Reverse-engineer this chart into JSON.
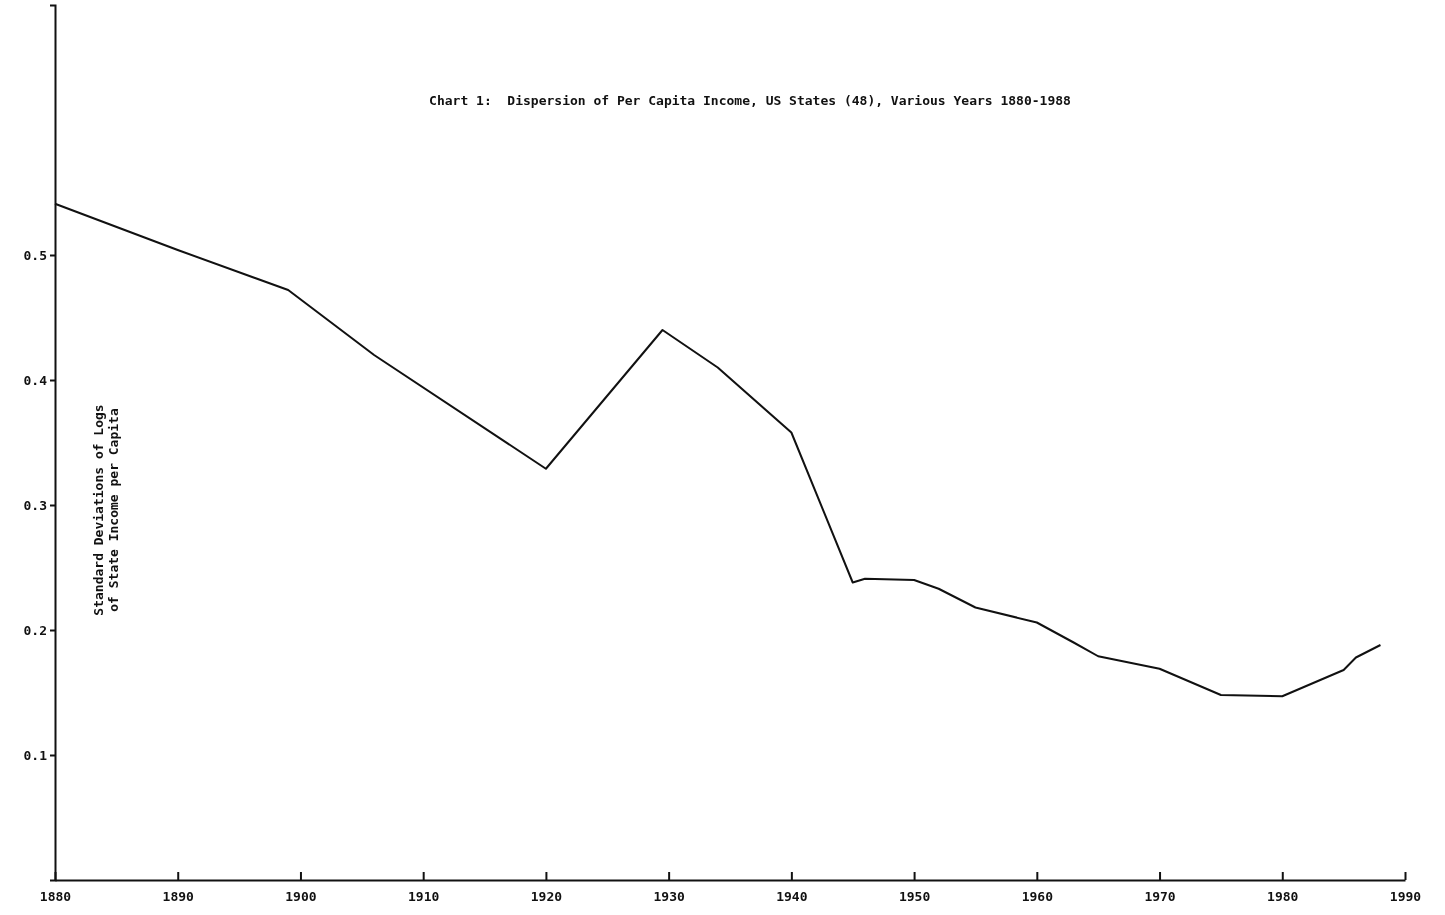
{
  "chart_data": {
    "type": "line",
    "title": "Chart 1:  Dispersion of Per Capita Income, US States (48), Various Years 1880-1988",
    "ylabel": "Standard Deviations of Logs of State Income per Capita",
    "x": [
      1880,
      1890,
      1899,
      1906,
      1920,
      1929.5,
      1934,
      1940,
      1945,
      1946,
      1950,
      1952,
      1955,
      1960,
      1963,
      1965,
      1970,
      1975,
      1980,
      1985,
      1986,
      1988
    ],
    "series": [
      {
        "color": "#111111",
        "values": [
          0.541,
          0.504,
          0.472,
          0.42,
          0.329,
          0.44,
          0.41,
          0.358,
          0.238,
          0.241,
          0.24,
          0.233,
          0.218,
          0.206,
          0.19,
          0.179,
          0.169,
          0.148,
          0.147,
          0.168,
          0.178,
          0.188
        ]
      }
    ],
    "xlim": [
      1880,
      1990
    ],
    "xticks": [
      1880,
      1890,
      1900,
      1910,
      1920,
      1930,
      1940,
      1950,
      1960,
      1970,
      1980,
      1990
    ],
    "ylim": [
      0,
      0.7
    ],
    "yticks": [
      0.1,
      0.2,
      0.3,
      0.4,
      0.5
    ],
    "grid": false,
    "marker": "none",
    "line_style": "solid"
  }
}
